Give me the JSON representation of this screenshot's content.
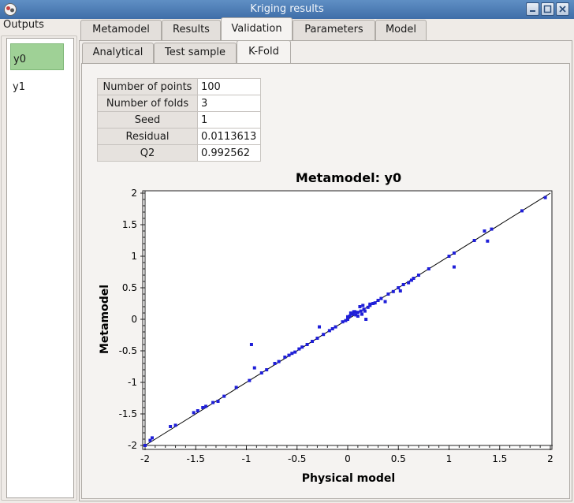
{
  "window": {
    "title": "Kriging results"
  },
  "outputs": {
    "label": "Outputs",
    "items": [
      "y0",
      "y1"
    ],
    "selected": "y0"
  },
  "tabs": [
    "Metamodel",
    "Results",
    "Validation",
    "Parameters",
    "Model"
  ],
  "active_tab": "Validation",
  "subtabs": [
    "Analytical",
    "Test sample",
    "K-Fold"
  ],
  "active_subtab": "K-Fold",
  "table": {
    "rows": [
      {
        "key": "Number of points",
        "value": "100"
      },
      {
        "key": "Number of folds",
        "value": "3"
      },
      {
        "key": "Seed",
        "value": "1"
      },
      {
        "key": "Residual",
        "value": "0.0113613"
      },
      {
        "key": "Q2",
        "value": "0.992562"
      }
    ]
  },
  "colors": {
    "selection": "#9fd196",
    "points": "#1f1fd8",
    "titlebar": "#4a7bb5"
  },
  "chart_data": {
    "type": "scatter",
    "title": "Metamodel: y0",
    "xlabel": "Physical model",
    "ylabel": "Metamodel",
    "xlim": [
      -2,
      2
    ],
    "ylim": [
      -2,
      2
    ],
    "xticks": [
      "-2",
      "-1.5",
      "-1",
      "-0.5",
      "0",
      "0.5",
      "1",
      "1.5",
      "2"
    ],
    "yticks": [
      "2",
      "1.5",
      "1",
      "0.5",
      "0",
      "-0.5",
      "-1",
      "-1.5",
      "-2"
    ],
    "reference_line": [
      [
        -2,
        -2
      ],
      [
        2,
        2
      ]
    ],
    "points": [
      [
        -2.0,
        -2.0
      ],
      [
        -1.95,
        -1.92
      ],
      [
        -1.93,
        -1.88
      ],
      [
        -1.75,
        -1.7
      ],
      [
        -1.7,
        -1.68
      ],
      [
        -1.52,
        -1.48
      ],
      [
        -1.48,
        -1.45
      ],
      [
        -1.43,
        -1.4
      ],
      [
        -1.4,
        -1.38
      ],
      [
        -1.33,
        -1.32
      ],
      [
        -1.28,
        -1.3
      ],
      [
        -1.22,
        -1.22
      ],
      [
        -1.1,
        -1.08
      ],
      [
        -0.97,
        -0.97
      ],
      [
        -0.95,
        -0.4
      ],
      [
        -0.92,
        -0.77
      ],
      [
        -0.85,
        -0.85
      ],
      [
        -0.72,
        -0.7
      ],
      [
        -0.68,
        -0.67
      ],
      [
        -0.62,
        -0.6
      ],
      [
        -0.58,
        -0.57
      ],
      [
        -0.52,
        -0.52
      ],
      [
        -0.48,
        -0.47
      ],
      [
        -0.45,
        -0.44
      ],
      [
        -0.4,
        -0.4
      ],
      [
        -0.35,
        -0.35
      ],
      [
        -0.3,
        -0.3
      ],
      [
        -0.28,
        -0.12
      ],
      [
        -0.24,
        -0.24
      ],
      [
        -0.18,
        -0.18
      ],
      [
        -0.12,
        -0.12
      ],
      [
        -0.05,
        -0.04
      ],
      [
        -0.02,
        -0.02
      ],
      [
        0.0,
        0.0
      ],
      [
        0.0,
        0.04
      ],
      [
        0.02,
        0.05
      ],
      [
        0.05,
        0.08
      ],
      [
        0.07,
        0.12
      ],
      [
        0.1,
        0.11
      ],
      [
        0.12,
        0.2
      ],
      [
        0.13,
        0.13
      ],
      [
        0.15,
        0.22
      ],
      [
        0.16,
        0.16
      ],
      [
        0.18,
        0.0
      ],
      [
        0.2,
        0.19
      ],
      [
        0.22,
        0.22
      ],
      [
        0.25,
        0.25
      ],
      [
        0.27,
        0.26
      ],
      [
        0.3,
        0.3
      ],
      [
        0.33,
        0.33
      ],
      [
        0.37,
        0.28
      ],
      [
        0.4,
        0.4
      ],
      [
        0.45,
        0.44
      ],
      [
        0.5,
        0.5
      ],
      [
        0.52,
        0.45
      ],
      [
        0.55,
        0.55
      ],
      [
        0.6,
        0.58
      ],
      [
        0.63,
        0.62
      ],
      [
        0.65,
        0.65
      ],
      [
        0.7,
        0.7
      ],
      [
        0.8,
        0.8
      ],
      [
        1.0,
        1.0
      ],
      [
        1.05,
        0.83
      ],
      [
        1.05,
        1.05
      ],
      [
        1.25,
        1.25
      ],
      [
        1.35,
        1.4
      ],
      [
        1.38,
        1.24
      ],
      [
        1.42,
        1.43
      ],
      [
        1.72,
        1.72
      ],
      [
        1.95,
        1.93
      ],
      [
        -0.8,
        -0.8
      ],
      [
        -0.55,
        -0.54
      ],
      [
        -0.15,
        -0.15
      ],
      [
        0.03,
        0.1
      ],
      [
        0.08,
        0.07
      ],
      [
        0.1,
        0.05
      ],
      [
        0.14,
        0.08
      ],
      [
        0.17,
        0.13
      ],
      [
        0.06,
        0.12
      ],
      [
        0.22,
        0.24
      ]
    ]
  }
}
